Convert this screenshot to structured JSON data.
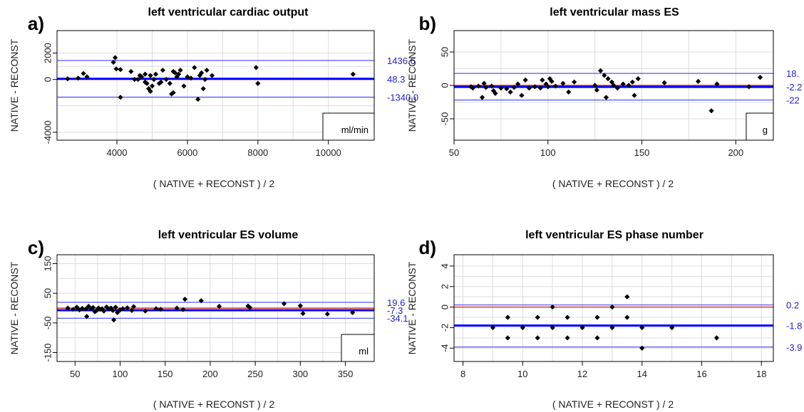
{
  "chart_data": [
    {
      "type": "scatter",
      "panel_label": "a)",
      "title": "left ventricular cardiac output",
      "xlabel": "( NATIVE + RECONST ) / 2",
      "ylabel": "NATIVE - RECONST",
      "unit": "ml/min",
      "xlim": [
        2300,
        11300
      ],
      "ylim": [
        -4600,
        3700
      ],
      "xticks": [
        4000,
        6000,
        8000,
        10000
      ],
      "yticks": [
        -4000,
        0,
        2000
      ],
      "mean": 48.3,
      "upper_loa": 1436.6,
      "lower_loa": -1340.0,
      "mean_label": "48.3",
      "upper_label": "1436.6",
      "lower_label": "-1340.0",
      "points": [
        [
          2600,
          50
        ],
        [
          2900,
          100
        ],
        [
          3050,
          450
        ],
        [
          3150,
          200
        ],
        [
          3900,
          1300
        ],
        [
          3950,
          1650
        ],
        [
          3980,
          800
        ],
        [
          4100,
          750
        ],
        [
          4100,
          -1350
        ],
        [
          4400,
          600
        ],
        [
          4500,
          0
        ],
        [
          4600,
          0
        ],
        [
          4650,
          300
        ],
        [
          4700,
          200
        ],
        [
          4800,
          400
        ],
        [
          4800,
          -200
        ],
        [
          4850,
          -300
        ],
        [
          4900,
          -700
        ],
        [
          4950,
          300
        ],
        [
          4950,
          -900
        ],
        [
          5000,
          -500
        ],
        [
          5050,
          0
        ],
        [
          5100,
          400
        ],
        [
          5200,
          -300
        ],
        [
          5250,
          -200
        ],
        [
          5300,
          700
        ],
        [
          5400,
          0
        ],
        [
          5500,
          -300
        ],
        [
          5550,
          -1100
        ],
        [
          5600,
          -1000
        ],
        [
          5600,
          600
        ],
        [
          5650,
          500
        ],
        [
          5700,
          200
        ],
        [
          5750,
          400
        ],
        [
          5800,
          700
        ],
        [
          5900,
          -500
        ],
        [
          6000,
          200
        ],
        [
          6100,
          100
        ],
        [
          6200,
          900
        ],
        [
          6300,
          -1500
        ],
        [
          6350,
          300
        ],
        [
          6400,
          500
        ],
        [
          6450,
          -700
        ],
        [
          6500,
          0
        ],
        [
          6550,
          700
        ],
        [
          6700,
          300
        ],
        [
          7950,
          900
        ],
        [
          8000,
          -300
        ],
        [
          10700,
          400
        ]
      ]
    },
    {
      "type": "scatter",
      "panel_label": "b)",
      "title": "left ventricular mass ES",
      "xlabel": "( NATIVE + RECONST ) / 2",
      "ylabel": "NATIVE - RECONST",
      "unit": "g",
      "xlim": [
        50,
        220
      ],
      "ylim": [
        -82,
        82
      ],
      "xticks": [
        50,
        100,
        150,
        200
      ],
      "yticks": [
        -50,
        0,
        50
      ],
      "mean": -2.2,
      "upper_loa": 18.0,
      "lower_loa": -22.0,
      "mean_label": "-2.2",
      "upper_label": "18.",
      "lower_label": "-22",
      "points": [
        [
          59,
          -2
        ],
        [
          60,
          -4
        ],
        [
          63,
          -1
        ],
        [
          65,
          -18
        ],
        [
          66,
          3
        ],
        [
          67,
          -3
        ],
        [
          70,
          -1
        ],
        [
          71,
          -8
        ],
        [
          72,
          -12
        ],
        [
          75,
          -4
        ],
        [
          78,
          -5
        ],
        [
          80,
          -10
        ],
        [
          82,
          -3
        ],
        [
          84,
          2
        ],
        [
          86,
          -15
        ],
        [
          88,
          8
        ],
        [
          90,
          -4
        ],
        [
          93,
          -2
        ],
        [
          96,
          -4
        ],
        [
          97,
          8
        ],
        [
          99,
          2
        ],
        [
          100,
          -2
        ],
        [
          101,
          10
        ],
        [
          102,
          6
        ],
        [
          104,
          -1
        ],
        [
          108,
          3
        ],
        [
          111,
          -10
        ],
        [
          114,
          5
        ],
        [
          125,
          0
        ],
        [
          126,
          -7
        ],
        [
          128,
          22
        ],
        [
          130,
          15
        ],
        [
          131,
          -18
        ],
        [
          132,
          10
        ],
        [
          134,
          5
        ],
        [
          135,
          0
        ],
        [
          137,
          -4
        ],
        [
          140,
          2
        ],
        [
          143,
          0
        ],
        [
          145,
          5
        ],
        [
          146,
          -15
        ],
        [
          148,
          10
        ],
        [
          162,
          4
        ],
        [
          180,
          6
        ],
        [
          187,
          -38
        ],
        [
          190,
          2
        ],
        [
          207,
          -2
        ],
        [
          213,
          12
        ]
      ]
    },
    {
      "type": "scatter",
      "panel_label": "c)",
      "title": "left ventricular ES volume",
      "xlabel": "( NATIVE + RECONST ) / 2",
      "ylabel": "NATIVE - RECONST",
      "unit": "ml",
      "xlim": [
        30,
        382
      ],
      "ylim": [
        -180,
        180
      ],
      "xticks": [
        50,
        100,
        150,
        200,
        250,
        300,
        350
      ],
      "yticks": [
        -150,
        -50,
        50,
        150
      ],
      "mean": -7.3,
      "upper_loa": 19.6,
      "lower_loa": -34.1,
      "mean_label": "-7.3",
      "upper_label": "19.6",
      "lower_label": "-34.1",
      "points": [
        [
          42,
          0
        ],
        [
          48,
          -4
        ],
        [
          52,
          3
        ],
        [
          55,
          -6
        ],
        [
          58,
          -1
        ],
        [
          62,
          -3
        ],
        [
          63,
          -28
        ],
        [
          65,
          6
        ],
        [
          68,
          -2
        ],
        [
          70,
          2
        ],
        [
          72,
          -12
        ],
        [
          74,
          -8
        ],
        [
          76,
          0
        ],
        [
          78,
          -4
        ],
        [
          80,
          -2
        ],
        [
          82,
          -10
        ],
        [
          85,
          4
        ],
        [
          88,
          -3
        ],
        [
          90,
          0
        ],
        [
          92,
          -8
        ],
        [
          93,
          -40
        ],
        [
          95,
          3
        ],
        [
          97,
          -15
        ],
        [
          100,
          -6
        ],
        [
          103,
          -2
        ],
        [
          108,
          1
        ],
        [
          113,
          -8
        ],
        [
          115,
          5
        ],
        [
          128,
          -10
        ],
        [
          140,
          -2
        ],
        [
          145,
          -4
        ],
        [
          163,
          0
        ],
        [
          170,
          -5
        ],
        [
          172,
          30
        ],
        [
          190,
          25
        ],
        [
          210,
          6
        ],
        [
          242,
          7
        ],
        [
          244,
          2
        ],
        [
          282,
          15
        ],
        [
          300,
          8
        ],
        [
          303,
          -18
        ],
        [
          330,
          -20
        ],
        [
          358,
          -15
        ]
      ]
    },
    {
      "type": "scatter",
      "panel_label": "d)",
      "title": "left ventricular ES phase number",
      "xlabel": "( NATIVE + RECONST ) / 2",
      "ylabel": "NATIVE - RECONST",
      "unit": "",
      "xlim": [
        7.7,
        18.4
      ],
      "ylim": [
        -5.3,
        5.1
      ],
      "xticks": [
        8,
        10,
        12,
        14,
        16,
        18
      ],
      "yticks": [
        -4,
        -2,
        0,
        2,
        4
      ],
      "mean": -1.8,
      "upper_loa": 0.2,
      "lower_loa": -3.9,
      "mean_label": "-1.8",
      "upper_label": "0.2",
      "lower_label": "-3.9",
      "points": [
        [
          9.0,
          -2
        ],
        [
          9.5,
          -1
        ],
        [
          9.5,
          -3
        ],
        [
          10.0,
          -2
        ],
        [
          10.5,
          -1
        ],
        [
          10.5,
          -3
        ],
        [
          11.0,
          0
        ],
        [
          11.0,
          -2
        ],
        [
          11.5,
          -1
        ],
        [
          11.5,
          -3
        ],
        [
          12.0,
          -2
        ],
        [
          12.5,
          -1
        ],
        [
          12.5,
          -3
        ],
        [
          13.0,
          0
        ],
        [
          13.0,
          -2
        ],
        [
          13.5,
          1
        ],
        [
          13.5,
          -1
        ],
        [
          14.0,
          -2
        ],
        [
          14.0,
          -4
        ],
        [
          15.0,
          -2
        ],
        [
          16.5,
          -3
        ]
      ]
    }
  ],
  "colors": {
    "loa_line": "#2a2af0",
    "mean_line": "#0000ff",
    "zero_line": "#d40000",
    "grid": "#dcdcdc",
    "point": "#000000",
    "annotation": "#1f1fd6"
  }
}
